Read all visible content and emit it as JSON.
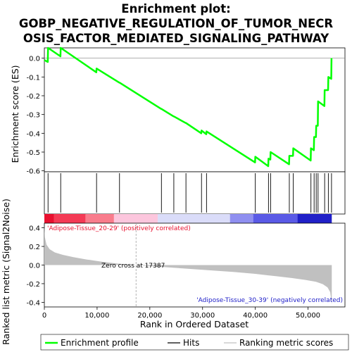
{
  "chart_data": {
    "type": "line",
    "title_lines": [
      "Enrichment plot:",
      "GOBP_NEGATIVE_REGULATION_OF_TUMOR_NECR",
      "OSIS_FACTOR_MEDIATED_SIGNALING_PATHWAY"
    ],
    "xlabel": "Rank in Ordered Dataset",
    "x_ticks": [
      0,
      10000,
      20000,
      30000,
      40000,
      50000
    ],
    "x_tick_labels": [
      "0",
      "10,000",
      "20,000",
      "30,000",
      "40,000",
      "50,000"
    ],
    "xlim": [
      0,
      57000
    ],
    "top_panel": {
      "ylabel": "Enrichment score (ES)",
      "ylim": [
        -0.605,
        0.055
      ],
      "y_ticks": [
        0.0,
        -0.1,
        -0.2,
        -0.3,
        -0.4,
        -0.5,
        -0.6
      ],
      "y_tick_labels": [
        "0.0",
        "-0.1",
        "-0.2",
        "-0.3",
        "-0.4",
        "-0.5",
        "-0.6"
      ],
      "series": [
        {
          "name": "Enrichment profile",
          "color": "#00ff00",
          "x": [
            0,
            650,
            700,
            3050,
            3100,
            9850,
            9900,
            14200,
            14250,
            22150,
            22200,
            24500,
            24550,
            26800,
            26850,
            29750,
            29800,
            30700,
            30750,
            39950,
            40000,
            42450,
            42500,
            42850,
            42900,
            46400,
            46450,
            47150,
            47200,
            50500,
            50550,
            51100,
            51150,
            51500,
            51550,
            51850,
            51900,
            53100,
            53150,
            53800,
            53850,
            54400,
            54450
          ],
          "y": [
            -0.01,
            -0.02,
            0.055,
            0.01,
            0.055,
            -0.075,
            -0.055,
            -0.13,
            -0.13,
            -0.27,
            -0.27,
            -0.31,
            -0.31,
            -0.345,
            -0.345,
            -0.4,
            -0.385,
            -0.405,
            -0.39,
            -0.555,
            -0.525,
            -0.575,
            -0.535,
            -0.54,
            -0.5,
            -0.565,
            -0.52,
            -0.52,
            -0.48,
            -0.545,
            -0.48,
            -0.49,
            -0.42,
            -0.42,
            -0.36,
            -0.36,
            -0.23,
            -0.255,
            -0.17,
            -0.17,
            -0.1,
            -0.11,
            0.0
          ]
        }
      ]
    },
    "hits": {
      "name": "Hits",
      "color": "#000000",
      "x": [
        700,
        3100,
        9900,
        14250,
        22200,
        24550,
        26850,
        29800,
        30750,
        40000,
        42500,
        42900,
        46450,
        47200,
        50550,
        51150,
        51550,
        51900,
        53150,
        53850,
        54450
      ]
    },
    "color_bar": {
      "segments": [
        {
          "x0": 0,
          "x1": 1800,
          "color": "#e8102f"
        },
        {
          "x0": 1800,
          "x1": 7800,
          "color": "#f43a55"
        },
        {
          "x0": 7800,
          "x1": 13200,
          "color": "#f97c8c"
        },
        {
          "x0": 13200,
          "x1": 21500,
          "color": "#fcc6dd"
        },
        {
          "x0": 21500,
          "x1": 35200,
          "color": "#dadcf9"
        },
        {
          "x0": 35200,
          "x1": 39600,
          "color": "#8f8ff0"
        },
        {
          "x0": 39600,
          "x1": 48000,
          "color": "#5a5ae6"
        },
        {
          "x0": 48000,
          "x1": 54500,
          "color": "#2020c8"
        }
      ]
    },
    "bottom_panel": {
      "ylabel": "Ranked list metric (Signal2Noise)",
      "ylim": [
        -0.45,
        0.45
      ],
      "y_ticks": [
        0.4,
        0.2,
        0.0,
        -0.2,
        -0.4
      ],
      "y_tick_labels": [
        "0.4",
        "0.2",
        "0.0",
        "-0.2",
        "-0.4"
      ],
      "metric_x": [
        0,
        100,
        400,
        1000,
        2000,
        3500,
        5500,
        8000,
        11000,
        14000,
        17387,
        21000,
        26000,
        31000,
        36000,
        40000,
        44000,
        47000,
        49500,
        51500,
        52800,
        53700,
        54200,
        54500
      ],
      "metric_y": [
        0.42,
        0.3,
        0.22,
        0.17,
        0.135,
        0.11,
        0.085,
        0.06,
        0.035,
        0.015,
        0.0,
        -0.015,
        -0.035,
        -0.055,
        -0.075,
        -0.095,
        -0.12,
        -0.14,
        -0.16,
        -0.18,
        -0.205,
        -0.24,
        -0.29,
        -0.42
      ],
      "fill_color": "#c0c0c0",
      "zero_cross_x": 17387
    },
    "annotations": {
      "positive": "'Adipose-Tissue_20-29' (positively correlated)",
      "negative": "'Adipose-Tissue_30-39' (negatively correlated)",
      "zero_cross": "Zero cross at 17387",
      "positive_color": "#e8102f",
      "negative_color": "#2020c8"
    },
    "legend": [
      {
        "label": "Enrichment profile",
        "color": "#00ff00"
      },
      {
        "label": "Hits",
        "color": "#000000"
      },
      {
        "label": "Ranking metric scores",
        "color": "#c0c0c0"
      }
    ]
  }
}
